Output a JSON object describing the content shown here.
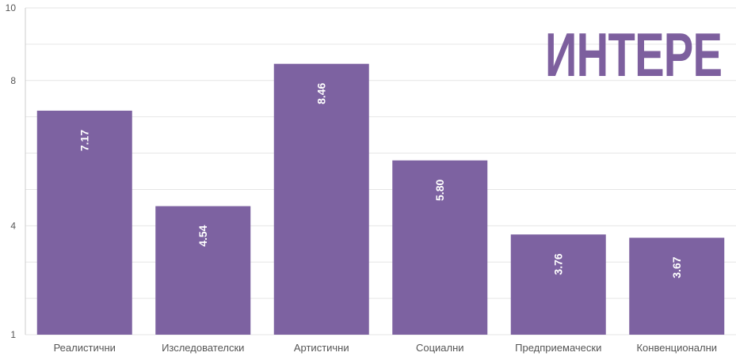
{
  "overlay_heading": "ИНТЕРЕ",
  "colors": {
    "bar": "#7d62a1",
    "heading": "#7d5f9e",
    "grid": "#e6e6e6",
    "axis_text": "#555555",
    "value_text": "#ffffff"
  },
  "chart_data": {
    "type": "bar",
    "categories": [
      "Реалистични",
      "Изследователски",
      "Артистични",
      "Социални",
      "Предприемачески",
      "Конвенционални"
    ],
    "values": [
      7.17,
      4.54,
      8.46,
      5.8,
      3.76,
      3.67
    ],
    "value_labels": [
      "7.17",
      "4.54",
      "8.46",
      "5.80",
      "3.76",
      "3.67"
    ],
    "ylim": [
      1,
      10
    ],
    "yticks": [
      1,
      4,
      8,
      10
    ],
    "grid": true,
    "title": "",
    "xlabel": "",
    "ylabel": ""
  }
}
